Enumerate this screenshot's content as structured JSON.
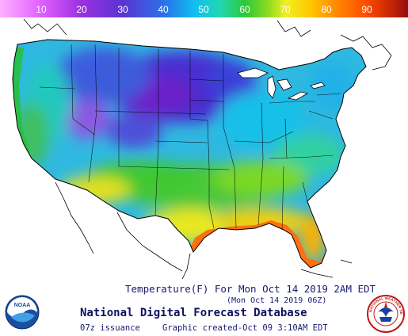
{
  "legend": {
    "values": [
      "10",
      "20",
      "30",
      "40",
      "50",
      "60",
      "70",
      "80",
      "90"
    ],
    "colors": [
      "#ff80ff",
      "#e040ff",
      "#9830e8",
      "#5838d8",
      "#2c6ae8",
      "#14b8e8",
      "#20d8a8",
      "#30c830",
      "#90dc20",
      "#f0f020",
      "#ffd000",
      "#ff9000",
      "#ff5000",
      "#d81000",
      "#901010"
    ]
  },
  "caption": {
    "title": "Temperature(F) For Mon Oct 14 2019  2AM EDT",
    "valid": "(Mon Oct 14 2019 06Z)",
    "database": "National Digital Forecast Database",
    "issuance": "07z issuance",
    "created": "Graphic created-Oct 09  3:10AM EDT"
  },
  "logos": {
    "noaa": "NOAA",
    "nws": "NATIONAL WEATHER SERVICE"
  }
}
